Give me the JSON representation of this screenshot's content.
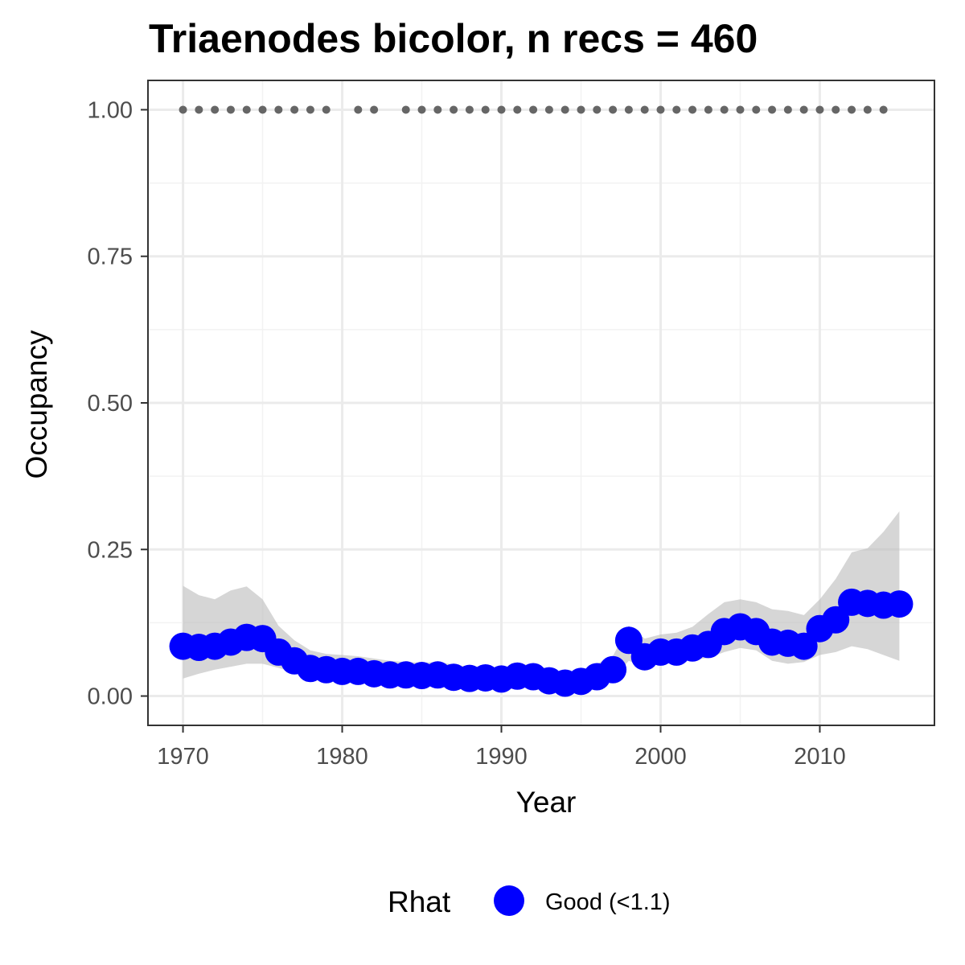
{
  "chart_data": {
    "type": "line",
    "title": "Triaenodes bicolor, n recs = 460",
    "xlabel": "Year",
    "ylabel": "Occupancy",
    "xlim": [
      1967.8,
      2017.2
    ],
    "ylim": [
      -0.05,
      1.05
    ],
    "x_ticks": [
      1970,
      1980,
      1990,
      2000,
      2010
    ],
    "x_tick_labels": [
      "1970",
      "1980",
      "1990",
      "2000",
      "2010"
    ],
    "y_ticks": [
      0,
      0.25,
      0.5,
      0.75,
      1.0
    ],
    "y_tick_labels": [
      "0.00",
      "0.25",
      "0.50",
      "0.75",
      "1.00"
    ],
    "grid": true,
    "legend": {
      "position": "bottom",
      "title": "Rhat",
      "entries": [
        {
          "label": "Good (<1.1)",
          "color": "#0000ff"
        }
      ]
    },
    "series": [
      {
        "name": "Good (<1.1)",
        "color": "#0000ff",
        "x": [
          1970,
          1971,
          1972,
          1973,
          1974,
          1975,
          1976,
          1977,
          1978,
          1979,
          1980,
          1981,
          1982,
          1983,
          1984,
          1985,
          1986,
          1987,
          1988,
          1989,
          1990,
          1991,
          1992,
          1993,
          1994,
          1995,
          1996,
          1997,
          1998,
          1999,
          2000,
          2001,
          2002,
          2003,
          2004,
          2005,
          2006,
          2007,
          2008,
          2009,
          2010,
          2011,
          2012,
          2013,
          2014,
          2015
        ],
        "y": [
          0.085,
          0.083,
          0.085,
          0.092,
          0.1,
          0.098,
          0.075,
          0.06,
          0.047,
          0.045,
          0.042,
          0.042,
          0.038,
          0.036,
          0.036,
          0.035,
          0.036,
          0.032,
          0.03,
          0.031,
          0.029,
          0.034,
          0.033,
          0.026,
          0.022,
          0.025,
          0.033,
          0.045,
          0.095,
          0.067,
          0.075,
          0.075,
          0.082,
          0.088,
          0.11,
          0.118,
          0.11,
          0.092,
          0.09,
          0.085,
          0.115,
          0.13,
          0.16,
          0.158,
          0.155,
          0.157
        ],
        "lower": [
          0.03,
          0.038,
          0.045,
          0.05,
          0.055,
          0.055,
          0.048,
          0.04,
          0.032,
          0.03,
          0.028,
          0.028,
          0.026,
          0.025,
          0.025,
          0.024,
          0.024,
          0.022,
          0.02,
          0.021,
          0.019,
          0.022,
          0.021,
          0.017,
          0.014,
          0.016,
          0.022,
          0.03,
          0.06,
          0.05,
          0.055,
          0.058,
          0.062,
          0.065,
          0.075,
          0.082,
          0.078,
          0.06,
          0.055,
          0.058,
          0.07,
          0.075,
          0.085,
          0.08,
          0.07,
          0.06
        ],
        "upper": [
          0.188,
          0.172,
          0.165,
          0.18,
          0.187,
          0.165,
          0.12,
          0.095,
          0.078,
          0.072,
          0.07,
          0.068,
          0.064,
          0.06,
          0.058,
          0.057,
          0.058,
          0.054,
          0.05,
          0.051,
          0.048,
          0.054,
          0.054,
          0.046,
          0.04,
          0.044,
          0.055,
          0.068,
          0.12,
          0.098,
          0.105,
          0.108,
          0.118,
          0.14,
          0.16,
          0.165,
          0.16,
          0.148,
          0.145,
          0.138,
          0.165,
          0.2,
          0.245,
          0.252,
          0.28,
          0.315
        ]
      }
    ],
    "records": {
      "name": "records",
      "color": "#666666",
      "y": 1.0,
      "x": [
        1970,
        1971,
        1972,
        1973,
        1974,
        1975,
        1976,
        1977,
        1978,
        1979,
        1981,
        1982,
        1984,
        1985,
        1986,
        1987,
        1988,
        1989,
        1990,
        1991,
        1992,
        1993,
        1994,
        1995,
        1996,
        1997,
        1998,
        1999,
        2000,
        2001,
        2002,
        2003,
        2004,
        2005,
        2006,
        2007,
        2008,
        2009,
        2010,
        2011,
        2012,
        2013,
        2014
      ]
    }
  }
}
